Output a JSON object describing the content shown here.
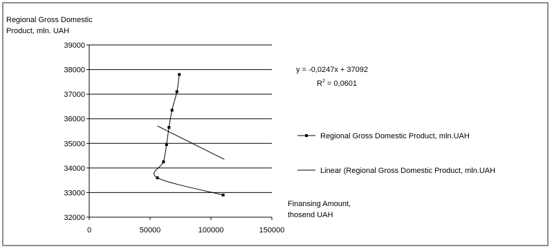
{
  "chart_data": {
    "type": "scatter",
    "title": "",
    "ylabel_lines": [
      "Regional Gross Domestic",
      "Product, mln. UAH"
    ],
    "xlabel_lines": [
      "Finansing Amount,",
      "thosend UAH"
    ],
    "xlim": [
      0,
      150000
    ],
    "ylim": [
      32000,
      39000
    ],
    "x_ticks": [
      0,
      50000,
      100000,
      150000
    ],
    "y_ticks": [
      32000,
      33000,
      34000,
      35000,
      36000,
      37000,
      38000,
      39000
    ],
    "x_tick_labels": [
      "0",
      "50000",
      "100000",
      "150000"
    ],
    "y_tick_labels": [
      "32000",
      "33000",
      "34000",
      "35000",
      "36000",
      "37000",
      "38000",
      "39000"
    ],
    "grid": "horizontal",
    "series": [
      {
        "name": "Regional Gross Domestic Product, mln.UAH",
        "style": "smoothed line with markers",
        "color": "#000000",
        "x": [
          74000,
          72000,
          68000,
          65500,
          63500,
          61000,
          56000,
          110000
        ],
        "y": [
          37800,
          37100,
          36350,
          35650,
          34950,
          34250,
          33600,
          32900
        ]
      }
    ],
    "trendline": {
      "name": "Linear (Regional Gross Domestic Product, mln.UAH",
      "type": "linear",
      "slope": -0.0247,
      "intercept": 37092,
      "x_range": [
        56000,
        111000
      ],
      "color": "#000000"
    },
    "annotation": {
      "equation": "y = -0,0247x + 37092",
      "r2_prefix": "R",
      "r2_sup": "2",
      "r2_suffix": " = 0,0601"
    },
    "legend_position": "right"
  }
}
